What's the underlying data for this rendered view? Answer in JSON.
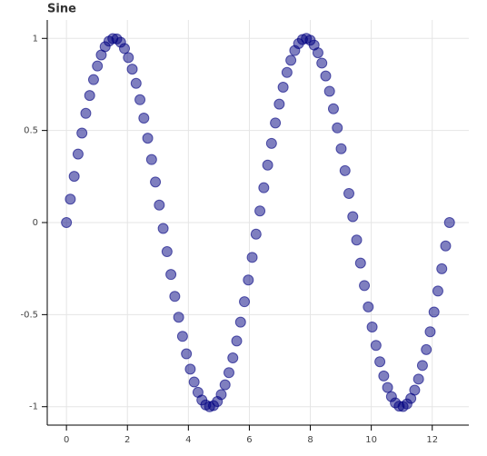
{
  "chart_data": {
    "type": "scatter",
    "title": "Sine",
    "series": [
      {
        "color": "#000080",
        "x": [
          0,
          0.127,
          0.254,
          0.381,
          0.508,
          0.635,
          0.762,
          0.889,
          1.015,
          1.142,
          1.269,
          1.396,
          1.523,
          1.65,
          1.777,
          1.904,
          2.031,
          2.158,
          2.285,
          2.412,
          2.539,
          2.666,
          2.793,
          2.919,
          3.046,
          3.173,
          3.3,
          3.427,
          3.554,
          3.681,
          3.808,
          3.935,
          4.062,
          4.189,
          4.316,
          4.443,
          4.57,
          4.697,
          4.823,
          4.95,
          5.077,
          5.204,
          5.331,
          5.458,
          5.585,
          5.712,
          5.839,
          5.966,
          6.093,
          6.22,
          6.347,
          6.474,
          6.601,
          6.727,
          6.854,
          6.981,
          7.108,
          7.235,
          7.362,
          7.489,
          7.616,
          7.743,
          7.87,
          7.997,
          8.124,
          8.251,
          8.378,
          8.505,
          8.631,
          8.758,
          8.885,
          9.012,
          9.139,
          9.266,
          9.393,
          9.52,
          9.647,
          9.774,
          9.901,
          10.028,
          10.155,
          10.282,
          10.409,
          10.535,
          10.662,
          10.789,
          10.916,
          11.043,
          11.17,
          11.297,
          11.424,
          11.551,
          11.678,
          11.805,
          11.932,
          12.059,
          12.186,
          12.313,
          12.439,
          12.566
        ],
        "values": [
          0,
          0.127,
          0.251,
          0.372,
          0.486,
          0.593,
          0.69,
          0.776,
          0.85,
          0.91,
          0.955,
          0.985,
          0.999,
          0.997,
          0.979,
          0.945,
          0.896,
          0.833,
          0.756,
          0.667,
          0.567,
          0.458,
          0.342,
          0.22,
          0.095,
          -0.032,
          -0.158,
          -0.282,
          -0.401,
          -0.514,
          -0.618,
          -0.713,
          -0.796,
          -0.866,
          -0.922,
          -0.964,
          -0.99,
          -1.0,
          -0.994,
          -0.972,
          -0.934,
          -0.881,
          -0.815,
          -0.735,
          -0.643,
          -0.541,
          -0.43,
          -0.312,
          -0.189,
          -0.063,
          0.063,
          0.189,
          0.312,
          0.43,
          0.541,
          0.643,
          0.735,
          0.815,
          0.881,
          0.934,
          0.972,
          0.994,
          1.0,
          0.99,
          0.964,
          0.922,
          0.866,
          0.796,
          0.713,
          0.618,
          0.514,
          0.401,
          0.282,
          0.158,
          0.032,
          -0.095,
          -0.22,
          -0.342,
          -0.458,
          -0.567,
          -0.667,
          -0.756,
          -0.833,
          -0.896,
          -0.945,
          -0.979,
          -0.997,
          -0.999,
          -0.985,
          -0.955,
          -0.91,
          -0.85,
          -0.776,
          -0.69,
          -0.593,
          -0.486,
          -0.372,
          -0.251,
          -0.127,
          0
        ]
      }
    ],
    "xlim": [
      -0.63,
      13.2
    ],
    "xticks": [
      0,
      2,
      4,
      6,
      8,
      10,
      12
    ],
    "ylim": [
      -1.1,
      1.1
    ],
    "yticks": [
      -1,
      -0.5,
      0,
      0.5,
      1
    ],
    "grid": true
  }
}
